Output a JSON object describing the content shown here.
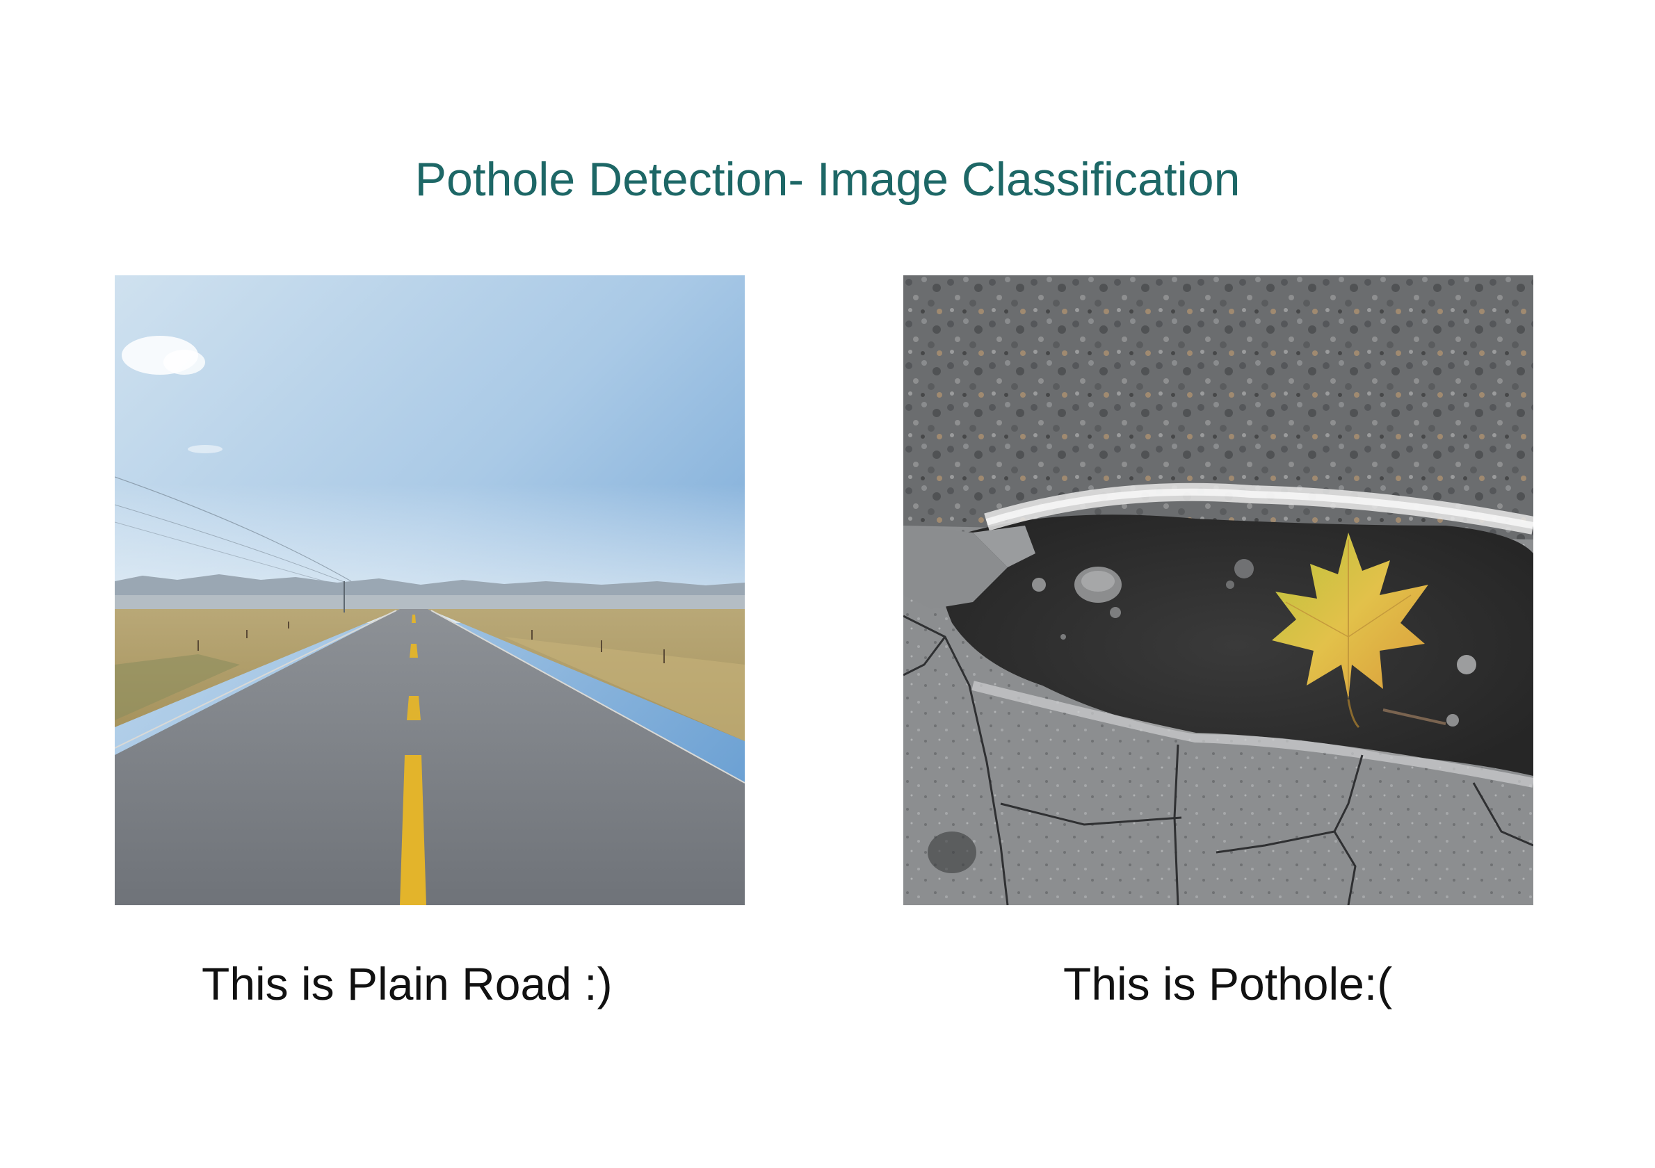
{
  "title": "Pothole Detection- Image Classification",
  "images": [
    {
      "caption": "This is Plain Road :)",
      "icon": "road-photo"
    },
    {
      "caption": "This is Pothole:(",
      "icon": "pothole-photo"
    }
  ],
  "colors": {
    "title": "#1d6766",
    "caption": "#111111",
    "background": "#ffffff"
  }
}
